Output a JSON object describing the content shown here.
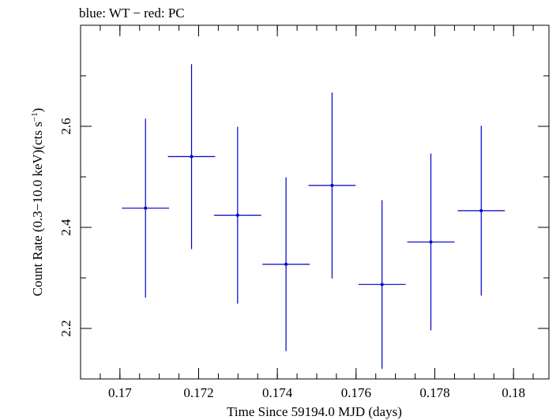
{
  "chart_data": {
    "type": "scatter",
    "title": "blue: WT − red: PC",
    "xlabel": "Time Since 59194.0 MJD (days)",
    "ylabel": "Count Rate (0.3−10.0 keV)(cts s",
    "ylabel_sup": "−1",
    "ylabel_end": ")",
    "xlim": [
      0.169,
      0.1809
    ],
    "ylim": [
      2.1,
      2.8
    ],
    "xticks": [
      0.17,
      0.172,
      0.174,
      0.176,
      0.178,
      0.18
    ],
    "xtick_labels": [
      "0.17",
      "0.172",
      "0.174",
      "0.176",
      "0.178",
      "0.18"
    ],
    "xminor_step": 0.0005,
    "yticks": [
      2.2,
      2.4,
      2.6
    ],
    "ytick_labels": [
      "2.2",
      "2.4",
      "2.6"
    ],
    "yminor_step": 0.1,
    "grid": false,
    "series": [
      {
        "color": "#0000cc",
        "points": [
          {
            "x": 0.17065,
            "xerr": 0.0006,
            "y": 2.438,
            "yerr": 0.177
          },
          {
            "x": 0.17182,
            "xerr": 0.0006,
            "y": 2.54,
            "yerr": 0.183
          },
          {
            "x": 0.17299,
            "xerr": 0.0006,
            "y": 2.424,
            "yerr": 0.175
          },
          {
            "x": 0.17422,
            "xerr": 0.0006,
            "y": 2.327,
            "yerr": 0.172
          },
          {
            "x": 0.17539,
            "xerr": 0.0006,
            "y": 2.483,
            "yerr": 0.184
          },
          {
            "x": 0.17666,
            "xerr": 0.0006,
            "y": 2.287,
            "yerr": 0.167
          },
          {
            "x": 0.1779,
            "xerr": 0.0006,
            "y": 2.371,
            "yerr": 0.175
          },
          {
            "x": 0.17918,
            "xerr": 0.0006,
            "y": 2.433,
            "yerr": 0.168
          }
        ]
      }
    ]
  }
}
